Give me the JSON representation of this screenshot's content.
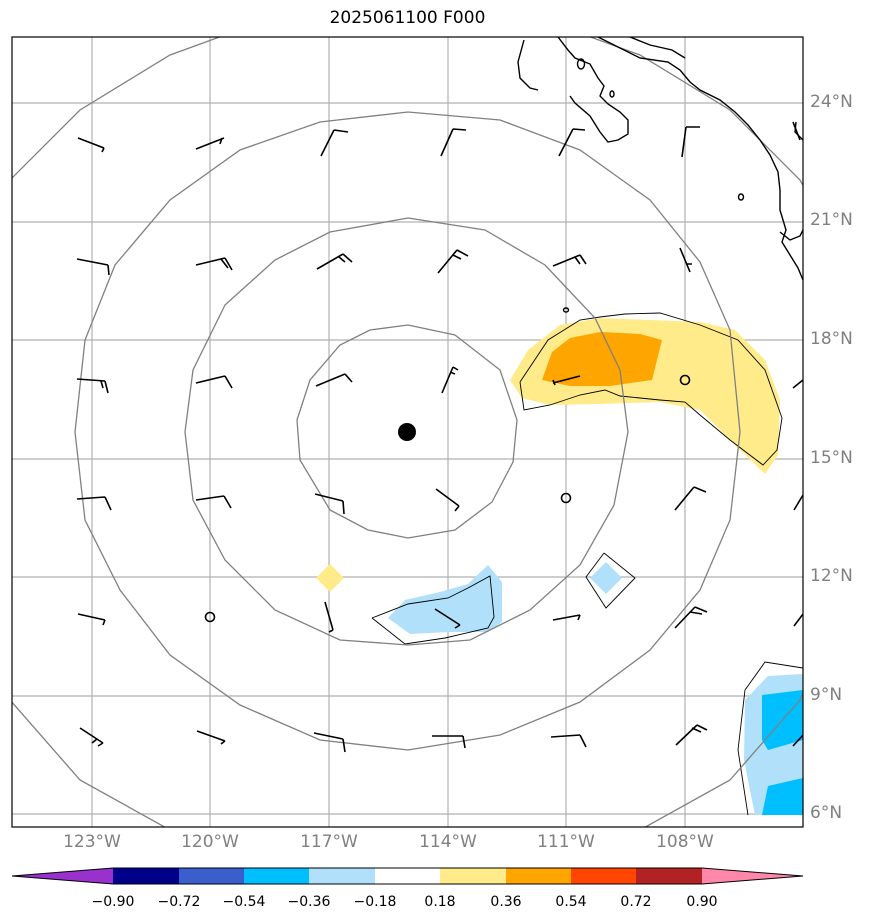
{
  "title": "2025061100 F000",
  "lat_labels": [
    "24°N",
    "21°N",
    "18°N",
    "15°N",
    "12°N",
    "9°N",
    "6°N"
  ],
  "lon_labels": [
    "123°W",
    "120°W",
    "117°W",
    "114°W",
    "111°W",
    "108°W"
  ],
  "colorbar": {
    "ticks": [
      "−0.90",
      "−0.72",
      "−0.54",
      "−0.36",
      "−0.18",
      "0.18",
      "0.36",
      "0.54",
      "0.72",
      "0.90"
    ],
    "colors": [
      "#9932CC",
      "#00008B",
      "#3A5FCD",
      "#00BFFF",
      "#B0E0FA",
      "#FFFFFF",
      "#FFEB8A",
      "#FFA500",
      "#FF4500",
      "#B22222",
      "#FF88AA"
    ]
  },
  "center_marker": {
    "lon": -115.1,
    "lat": 15.7
  },
  "calm_markers": [
    {
      "lon": -120.0,
      "lat": 11.0
    },
    {
      "lon": -110.9,
      "lat": 14.0
    },
    {
      "lon": -107.9,
      "lat": 17.0
    }
  ]
}
